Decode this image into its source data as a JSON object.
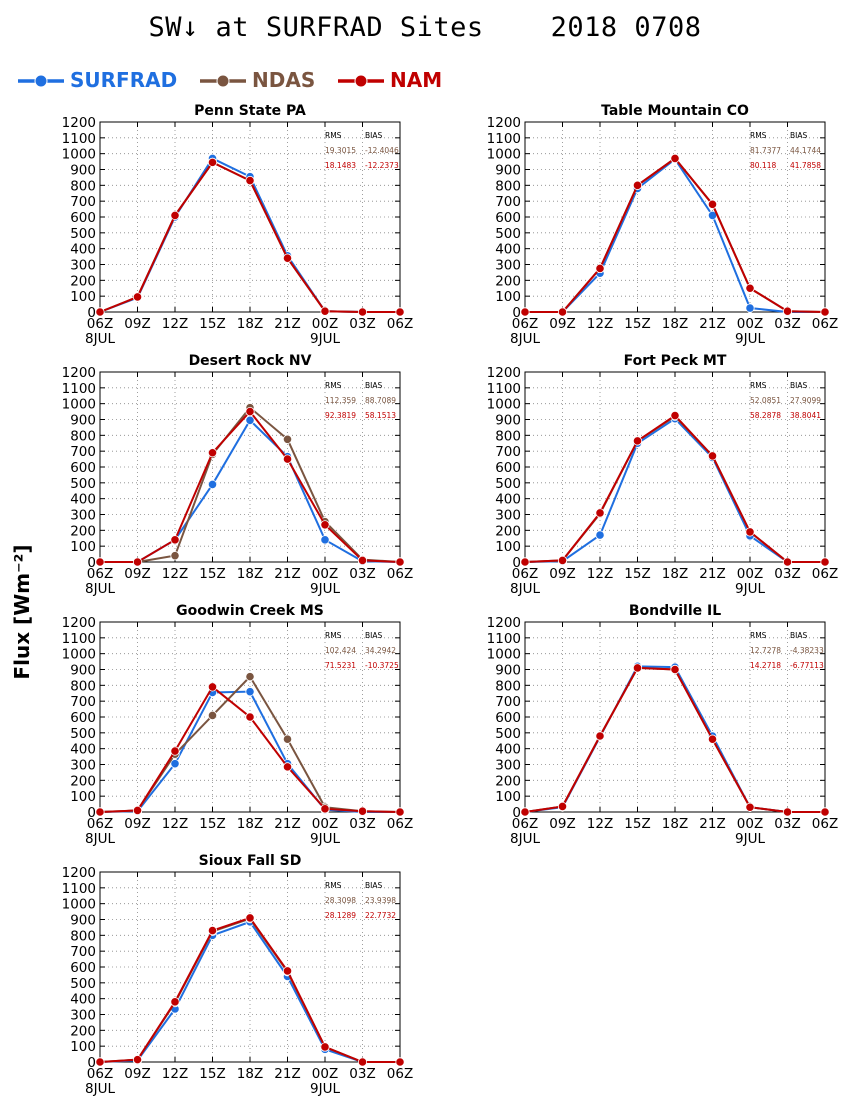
{
  "title": "SW↓ at SURFRAD Sites    2018 0708",
  "ylabel": "Flux [Wm⁻²]",
  "legend": [
    {
      "name": "SURFRAD",
      "color": "#1f6fe0"
    },
    {
      "name": "NDAS",
      "color": "#7a5540"
    },
    {
      "name": "NAM",
      "color": "#c00000"
    }
  ],
  "stats_headers": {
    "rms": "RMS",
    "bias": "BIAS"
  },
  "chart_data": [
    {
      "type": "line",
      "title": "Penn State PA",
      "x": [
        "06Z",
        "09Z",
        "12Z",
        "15Z",
        "18Z",
        "21Z",
        "00Z",
        "03Z",
        "06Z"
      ],
      "x_sublabels": [
        "8JUL",
        "",
        "",
        "",
        "",
        "",
        "9JUL",
        "",
        ""
      ],
      "ylim": [
        0,
        1200
      ],
      "yticks": [
        0,
        100,
        200,
        300,
        400,
        500,
        600,
        700,
        800,
        900,
        1000,
        1100,
        1200
      ],
      "grid": true,
      "series": [
        {
          "name": "SURFRAD",
          "values": [
            0,
            90,
            600,
            970,
            855,
            355,
            5,
            0,
            0
          ]
        },
        {
          "name": "NDAS",
          "values": [
            0,
            95,
            610,
            945,
            830,
            340,
            5,
            0,
            0
          ]
        },
        {
          "name": "NAM",
          "values": [
            0,
            95,
            610,
            945,
            830,
            340,
            5,
            0,
            0
          ]
        }
      ],
      "stats": [
        {
          "name": "NDAS",
          "rms": "19.3015",
          "bias": "-12.4046"
        },
        {
          "name": "NAM",
          "rms": "18.1483",
          "bias": "-12.2373"
        }
      ]
    },
    {
      "type": "line",
      "title": "Table Mountain CO",
      "x": [
        "06Z",
        "09Z",
        "12Z",
        "15Z",
        "18Z",
        "21Z",
        "00Z",
        "03Z",
        "06Z"
      ],
      "x_sublabels": [
        "8JUL",
        "",
        "",
        "",
        "",
        "",
        "9JUL",
        "",
        ""
      ],
      "ylim": [
        0,
        1200
      ],
      "yticks": [
        0,
        100,
        200,
        300,
        400,
        500,
        600,
        700,
        800,
        900,
        1000,
        1100,
        1200
      ],
      "grid": true,
      "series": [
        {
          "name": "SURFRAD",
          "values": [
            0,
            0,
            245,
            780,
            965,
            610,
            25,
            0,
            0
          ]
        },
        {
          "name": "NDAS",
          "values": [
            0,
            0,
            275,
            800,
            970,
            680,
            150,
            5,
            0
          ]
        },
        {
          "name": "NAM",
          "values": [
            0,
            0,
            275,
            800,
            970,
            680,
            150,
            5,
            0
          ]
        }
      ],
      "stats": [
        {
          "name": "NDAS",
          "rms": "81.7377",
          "bias": "44.1744"
        },
        {
          "name": "NAM",
          "rms": "80.118",
          "bias": "41.7858"
        }
      ]
    },
    {
      "type": "line",
      "title": "Desert Rock NV",
      "x": [
        "06Z",
        "09Z",
        "12Z",
        "15Z",
        "18Z",
        "21Z",
        "00Z",
        "03Z",
        "06Z"
      ],
      "x_sublabels": [
        "8JUL",
        "",
        "",
        "",
        "",
        "",
        "9JUL",
        "",
        ""
      ],
      "ylim": [
        0,
        1200
      ],
      "yticks": [
        0,
        100,
        200,
        300,
        400,
        500,
        600,
        700,
        800,
        900,
        1000,
        1100,
        1200
      ],
      "grid": true,
      "series": [
        {
          "name": "SURFRAD",
          "values": [
            0,
            0,
            140,
            490,
            895,
            665,
            140,
            5,
            0
          ]
        },
        {
          "name": "NDAS",
          "values": [
            0,
            0,
            40,
            680,
            975,
            775,
            255,
            15,
            0
          ]
        },
        {
          "name": "NAM",
          "values": [
            0,
            0,
            140,
            690,
            950,
            650,
            235,
            10,
            0
          ]
        }
      ],
      "stats": [
        {
          "name": "NDAS",
          "rms": "112.359",
          "bias": "88.7089"
        },
        {
          "name": "NAM",
          "rms": "92.3819",
          "bias": "58.1513"
        }
      ]
    },
    {
      "type": "line",
      "title": "Fort Peck MT",
      "x": [
        "06Z",
        "09Z",
        "12Z",
        "15Z",
        "18Z",
        "21Z",
        "00Z",
        "03Z",
        "06Z"
      ],
      "x_sublabels": [
        "8JUL",
        "",
        "",
        "",
        "",
        "",
        "9JUL",
        "",
        ""
      ],
      "ylim": [
        0,
        1200
      ],
      "yticks": [
        0,
        100,
        200,
        300,
        400,
        500,
        600,
        700,
        800,
        900,
        1000,
        1100,
        1200
      ],
      "grid": true,
      "series": [
        {
          "name": "SURFRAD",
          "values": [
            0,
            5,
            170,
            750,
            905,
            660,
            165,
            0,
            0
          ]
        },
        {
          "name": "NDAS",
          "values": [
            0,
            10,
            305,
            765,
            920,
            670,
            190,
            0,
            0
          ]
        },
        {
          "name": "NAM",
          "values": [
            0,
            10,
            310,
            765,
            925,
            670,
            190,
            0,
            0
          ]
        }
      ],
      "stats": [
        {
          "name": "NDAS",
          "rms": "52.0851",
          "bias": "27.9099"
        },
        {
          "name": "NAM",
          "rms": "58.2878",
          "bias": "38.8041"
        }
      ]
    },
    {
      "type": "line",
      "title": "Goodwin Creek MS",
      "x": [
        "06Z",
        "09Z",
        "12Z",
        "15Z",
        "18Z",
        "21Z",
        "00Z",
        "03Z",
        "06Z"
      ],
      "x_sublabels": [
        "8JUL",
        "",
        "",
        "",
        "",
        "",
        "9JUL",
        "",
        ""
      ],
      "ylim": [
        0,
        1200
      ],
      "yticks": [
        0,
        100,
        200,
        300,
        400,
        500,
        600,
        700,
        800,
        900,
        1000,
        1100,
        1200
      ],
      "grid": true,
      "series": [
        {
          "name": "SURFRAD",
          "values": [
            0,
            5,
            305,
            755,
            760,
            305,
            15,
            0,
            0
          ]
        },
        {
          "name": "NDAS",
          "values": [
            0,
            10,
            365,
            610,
            855,
            460,
            30,
            5,
            0
          ]
        },
        {
          "name": "NAM",
          "values": [
            0,
            10,
            385,
            790,
            600,
            285,
            20,
            5,
            0
          ]
        }
      ],
      "stats": [
        {
          "name": "NDAS",
          "rms": "102.424",
          "bias": "34.2942"
        },
        {
          "name": "NAM",
          "rms": "71.5231",
          "bias": "-10.3725"
        }
      ]
    },
    {
      "type": "line",
      "title": "Bondville IL",
      "x": [
        "06Z",
        "09Z",
        "12Z",
        "15Z",
        "18Z",
        "21Z",
        "00Z",
        "03Z",
        "06Z"
      ],
      "x_sublabels": [
        "8JUL",
        "",
        "",
        "",
        "",
        "",
        "9JUL",
        "",
        ""
      ],
      "ylim": [
        0,
        1200
      ],
      "yticks": [
        0,
        100,
        200,
        300,
        400,
        500,
        600,
        700,
        800,
        900,
        1000,
        1100,
        1200
      ],
      "grid": true,
      "series": [
        {
          "name": "SURFRAD",
          "values": [
            0,
            30,
            475,
            920,
            915,
            480,
            30,
            0,
            0
          ]
        },
        {
          "name": "NDAS",
          "values": [
            0,
            35,
            480,
            910,
            900,
            460,
            30,
            0,
            0
          ]
        },
        {
          "name": "NAM",
          "values": [
            0,
            35,
            480,
            910,
            900,
            460,
            30,
            0,
            0
          ]
        }
      ],
      "stats": [
        {
          "name": "NDAS",
          "rms": "12.7278",
          "bias": "-4.38233"
        },
        {
          "name": "NAM",
          "rms": "14.2718",
          "bias": "-6.77113"
        }
      ]
    },
    {
      "type": "line",
      "title": "Sioux Fall SD",
      "x": [
        "06Z",
        "09Z",
        "12Z",
        "15Z",
        "18Z",
        "21Z",
        "00Z",
        "03Z",
        "06Z"
      ],
      "x_sublabels": [
        "8JUL",
        "",
        "",
        "",
        "",
        "",
        "9JUL",
        "",
        ""
      ],
      "ylim": [
        0,
        1200
      ],
      "yticks": [
        0,
        100,
        200,
        300,
        400,
        500,
        600,
        700,
        800,
        900,
        1000,
        1100,
        1200
      ],
      "grid": true,
      "series": [
        {
          "name": "SURFRAD",
          "values": [
            0,
            10,
            335,
            800,
            885,
            540,
            80,
            0,
            0
          ]
        },
        {
          "name": "NDAS",
          "values": [
            0,
            15,
            375,
            825,
            905,
            570,
            95,
            0,
            0
          ]
        },
        {
          "name": "NAM",
          "values": [
            0,
            15,
            380,
            830,
            910,
            575,
            95,
            0,
            0
          ]
        }
      ],
      "stats": [
        {
          "name": "NDAS",
          "rms": "28.3098",
          "bias": "23.9398"
        },
        {
          "name": "NAM",
          "rms": "28.1289",
          "bias": "22.7732"
        }
      ]
    }
  ]
}
